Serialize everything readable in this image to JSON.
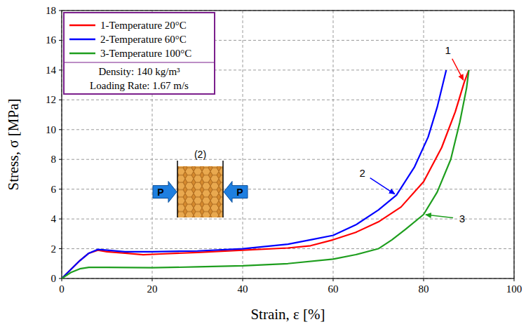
{
  "chart_data": {
    "type": "line",
    "x_label": "Strain, ε [%]",
    "y_label": "Stress, σ [MPa]",
    "xlim": [
      0,
      100
    ],
    "xticks": [
      0,
      20,
      40,
      60,
      80,
      100
    ],
    "ylim": [
      0,
      18
    ],
    "yticks": [
      0,
      2,
      4,
      6,
      8,
      10,
      12,
      14,
      16,
      18
    ],
    "grid": true,
    "legend": "upper left",
    "notes": [
      "Density: 140 kg/m³",
      "Loading Rate: 1.67 m/s"
    ],
    "annotations": [
      "1",
      "2",
      "3"
    ],
    "inset": {
      "label": "(2)",
      "force": "P"
    },
    "series": [
      {
        "name": "1-Temperature 20°C",
        "color": "#ff0000",
        "x": [
          0,
          2,
          4,
          6,
          8,
          10,
          14,
          18,
          22,
          30,
          40,
          50,
          55,
          60,
          65,
          70,
          75,
          80,
          84,
          87,
          89,
          90
        ],
        "values": [
          0,
          0.6,
          1.2,
          1.7,
          1.9,
          1.8,
          1.7,
          1.6,
          1.65,
          1.75,
          1.9,
          2.05,
          2.2,
          2.6,
          3.1,
          3.8,
          4.8,
          6.5,
          8.8,
          11.2,
          13.2,
          14
        ]
      },
      {
        "name": "2-Temperature 60°C",
        "color": "#0000ff",
        "x": [
          0,
          2,
          4,
          6,
          8,
          10,
          14,
          20,
          30,
          40,
          50,
          55,
          60,
          65,
          70,
          74,
          78,
          81,
          83,
          85
        ],
        "values": [
          0,
          0.6,
          1.2,
          1.7,
          1.95,
          1.9,
          1.8,
          1.8,
          1.85,
          2.0,
          2.3,
          2.6,
          2.9,
          3.6,
          4.6,
          5.6,
          7.5,
          9.5,
          11.5,
          14
        ]
      },
      {
        "name": "3-Temperature 100°C",
        "color": "#1e9e1e",
        "x": [
          0,
          2,
          4,
          6,
          10,
          20,
          30,
          40,
          50,
          60,
          65,
          70,
          73,
          76,
          80,
          83,
          86,
          88,
          89.5,
          90
        ],
        "values": [
          0,
          0.4,
          0.65,
          0.75,
          0.75,
          0.72,
          0.78,
          0.85,
          1.0,
          1.3,
          1.6,
          2.0,
          2.6,
          3.3,
          4.3,
          5.8,
          8.0,
          10.5,
          12.8,
          14
        ]
      }
    ]
  }
}
